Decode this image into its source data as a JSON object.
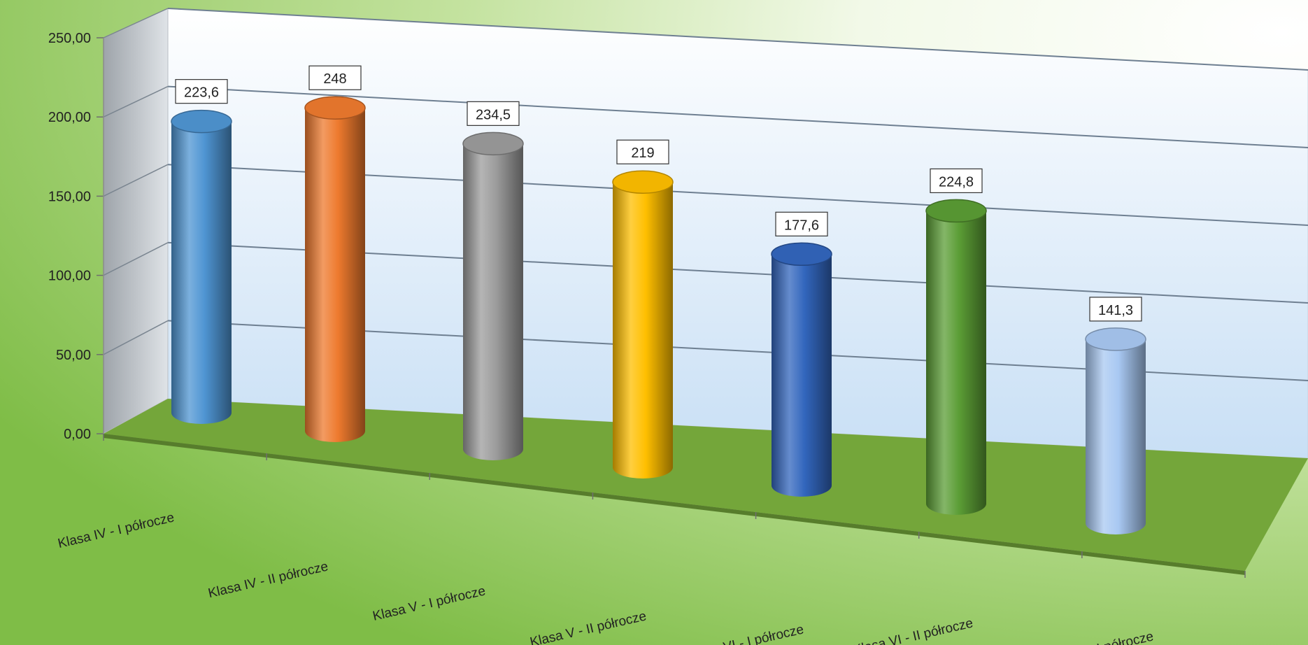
{
  "chart_data": {
    "type": "bar",
    "style": "3d-cylinder",
    "categories": [
      "Klasa IV - I półrocze",
      "Klasa IV - II półrocze",
      "Klasa V - I półrocze",
      "Klasa V - II półrocze",
      "Klasa VI - I półrocze",
      "Klasa VI - II półrocze",
      "Klasa VII - I półrocze"
    ],
    "values": [
      223.6,
      248,
      234.5,
      219,
      177.6,
      224.8,
      141.3
    ],
    "value_labels": [
      "223,6",
      "248",
      "234,5",
      "219",
      "177,6",
      "224,8",
      "141,3"
    ],
    "bar_colors": [
      "#4f95d3",
      "#ee7a2e",
      "#9c9c9c",
      "#ffbf00",
      "#3266bd",
      "#5b9d35",
      "#a8c8f2"
    ],
    "ylim": [
      0,
      250
    ],
    "yticks": [
      0,
      50,
      100,
      150,
      200,
      250
    ],
    "ytick_labels": [
      "0,00",
      "50,00",
      "100,00",
      "150,00",
      "200,00",
      "250,00"
    ],
    "grid": true,
    "legend": "none",
    "title": "",
    "xlabel": "",
    "ylabel": "",
    "background_color": "#8fc65a",
    "floor_color": "#74a63a",
    "wall_color": "#dce9f7"
  }
}
